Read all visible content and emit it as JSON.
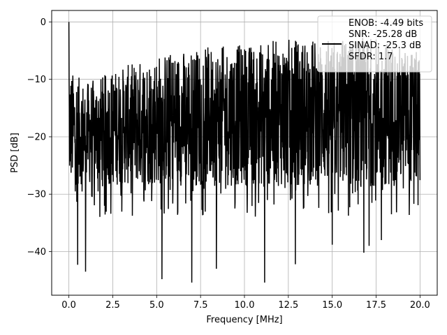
{
  "chart_data": {
    "type": "line",
    "title": "",
    "xlabel": "Frequency [MHz]",
    "ylabel": "PSD [dB]",
    "xlim": [
      -0.98,
      20.98
    ],
    "ylim": [
      -47.6,
      2.0
    ],
    "xticks": [
      0.0,
      2.5,
      5.0,
      7.5,
      10.0,
      12.5,
      15.0,
      17.5,
      20.0
    ],
    "xtick_labels": [
      "0.0",
      "2.5",
      "5.0",
      "7.5",
      "10.0",
      "12.5",
      "15.0",
      "17.5",
      "20.0"
    ],
    "yticks": [
      0,
      -10,
      -20,
      -30,
      -40
    ],
    "ytick_labels": [
      "0",
      "−10",
      "−20",
      "−30",
      "−40"
    ],
    "grid": true,
    "legend_placement": "top-right",
    "series": [
      {
        "color": "#000000",
        "legend_lines": [
          "ENOB: -4.49 bits",
          "SNR: -25.28 dB",
          "SINAD: -25.3 dB",
          "SFDR: 1.7"
        ],
        "x_range": [
          0.0,
          20.0
        ],
        "peak": {
          "x": 0.0,
          "y": 0.0
        },
        "notable_minima": [
          {
            "x": 0.5,
            "y": -42.3
          },
          {
            "x": 0.95,
            "y": -43.5
          },
          {
            "x": 5.3,
            "y": -44.8
          },
          {
            "x": 7.0,
            "y": -45.4
          },
          {
            "x": 8.4,
            "y": -43.0
          },
          {
            "x": 11.15,
            "y": -45.4
          },
          {
            "x": 12.9,
            "y": -42.2
          },
          {
            "x": 15.0,
            "y": -38.8
          },
          {
            "x": 16.8,
            "y": -40.2
          },
          {
            "x": 17.1,
            "y": -39.0
          },
          {
            "x": 17.8,
            "y": -38.0
          }
        ],
        "envelope_top": [
          {
            "x": 0.1,
            "y": -9.0
          },
          {
            "x": 1.0,
            "y": -11.0
          },
          {
            "x": 2.5,
            "y": -9.0
          },
          {
            "x": 5.0,
            "y": -6.0
          },
          {
            "x": 7.5,
            "y": -5.0
          },
          {
            "x": 10.0,
            "y": -4.5
          },
          {
            "x": 12.5,
            "y": -3.5
          },
          {
            "x": 15.0,
            "y": -3.5
          },
          {
            "x": 17.5,
            "y": -3.0
          },
          {
            "x": 20.0,
            "y": -6.0
          }
        ],
        "typical_floor": -28.0
      }
    ]
  }
}
